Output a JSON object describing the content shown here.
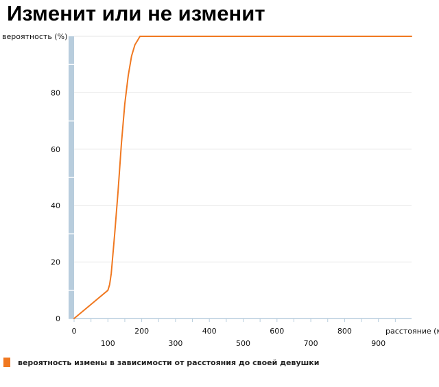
{
  "colors": {
    "series": "#f07820",
    "axis_band": "#b8cddd",
    "grid": "#e6e6e6",
    "axis_line": "#b8cddd"
  },
  "chart_data": {
    "type": "line",
    "title": "Изменит или не изменит",
    "ylabel": "вероятность (%)",
    "xlabel": "расстояние (м)",
    "xlim": [
      0,
      1000
    ],
    "ylim": [
      0,
      100
    ],
    "x_ticks": [
      "0",
      "100",
      "200",
      "300",
      "400",
      "500",
      "600",
      "700",
      "800",
      "900"
    ],
    "y_ticks": [
      "0",
      "20",
      "40",
      "60",
      "80"
    ],
    "grid": true,
    "legend_position": "bottom-left",
    "series": [
      {
        "name": "вероятность измены в зависимости от расстояния до своей девушки",
        "x": [
          0,
          50,
          100,
          105,
          110,
          120,
          130,
          140,
          150,
          160,
          170,
          180,
          190,
          195,
          200,
          1000
        ],
        "y": [
          0,
          5,
          10,
          12,
          16,
          30,
          45,
          62,
          76,
          86,
          93,
          97,
          99,
          100,
          100,
          100
        ]
      }
    ]
  }
}
